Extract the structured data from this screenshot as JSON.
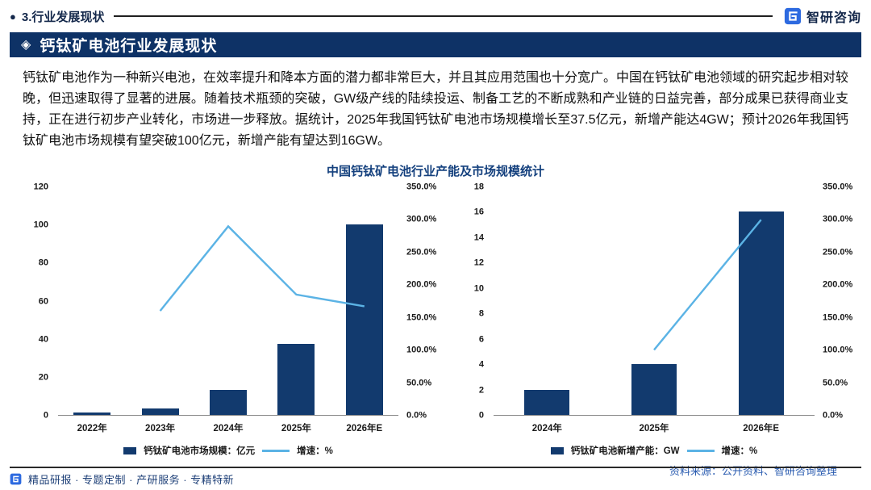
{
  "colors": {
    "banner_bg": "#0e3266",
    "bar": "#123a6e",
    "line": "#5bb3e5",
    "header_text": "#14284b",
    "chart_title": "#15417e",
    "source_text": "#2b5cb0",
    "footer_text": "#1d3f77",
    "logo_blue": "#2d6ae0"
  },
  "header": {
    "bullet_glyph": "●",
    "title": "3.行业发展现状",
    "logo_text": "智研咨询",
    "logo_icon": "zhiyan-logo-icon"
  },
  "banner": {
    "icon_glyph": "◈",
    "icon_name": "diamond-icon",
    "title": "钙钛矿电池行业发展现状"
  },
  "body_paragraph": "钙钛矿电池作为一种新兴电池，在效率提升和降本方面的潜力都非常巨大，并且其应用范围也十分宽广。中国在钙钛矿电池领域的研究起步相对较晚，但迅速取得了显著的进展。随着技术瓶颈的突破，GW级产线的陆续投运、制备工艺的不断成熟和产业链的日益完善，部分成果已获得商业支持，正在进行初步产业转化，市场进一步释放。据统计，2025年我国钙钛矿电池市场规模增长至37.5亿元，新增产能达4GW；预计2026年我国钙钛矿电池市场规模有望突破100亿元，新增产能有望达到16GW。",
  "figure": {
    "title": "中国钙钛矿电池行业产能及市场规模统计",
    "source": "资料来源：公开资料、智研咨询整理"
  },
  "chart_data": [
    {
      "type": "combo-bar-line",
      "title": "中国钙钛矿电池行业产能及市场规模统计",
      "categories": [
        "2022年",
        "2023年",
        "2024年",
        "2025年",
        "2026年E"
      ],
      "series": [
        {
          "name": "钙钛矿电池市场规模：亿元",
          "type": "bar",
          "axis": "left",
          "values": [
            1.3,
            3.4,
            13,
            37.5,
            100
          ]
        },
        {
          "name": "增速：%",
          "type": "line",
          "axis": "right",
          "values": [
            null,
            160,
            290,
            185,
            167
          ]
        }
      ],
      "left_axis": {
        "min": 0,
        "max": 120,
        "step": 20,
        "ticks": [
          "0",
          "20",
          "40",
          "60",
          "80",
          "100",
          "120"
        ]
      },
      "right_axis": {
        "min": 0,
        "max": 350,
        "step": 50,
        "format": "percent",
        "ticks": [
          "0.0%",
          "50.0%",
          "100.0%",
          "150.0%",
          "200.0%",
          "250.0%",
          "300.0%",
          "350.0%"
        ]
      },
      "grid": false,
      "legend_position": "bottom"
    },
    {
      "type": "combo-bar-line",
      "title": "中国钙钛矿电池行业产能及市场规模统计",
      "categories": [
        "2024年",
        "2025年",
        "2026年E"
      ],
      "series": [
        {
          "name": "钙钛矿电池新增产能：GW",
          "type": "bar",
          "axis": "left",
          "values": [
            2,
            4,
            16
          ]
        },
        {
          "name": "增速：%",
          "type": "line",
          "axis": "right",
          "values": [
            null,
            100,
            300
          ]
        }
      ],
      "left_axis": {
        "min": 0,
        "max": 18,
        "step": 2,
        "ticks": [
          "0",
          "2",
          "4",
          "6",
          "8",
          "10",
          "12",
          "14",
          "16",
          "18"
        ]
      },
      "right_axis": {
        "min": 0,
        "max": 350,
        "step": 50,
        "format": "percent",
        "ticks": [
          "0.0%",
          "50.0%",
          "100.0%",
          "150.0%",
          "200.0%",
          "250.0%",
          "300.0%",
          "350.0%"
        ]
      },
      "grid": false,
      "legend_position": "bottom"
    }
  ],
  "footer": {
    "text": "精品研报 · 专题定制 · 产研服务 · 专精特新",
    "logo_icon": "zhiyan-logo-icon"
  }
}
